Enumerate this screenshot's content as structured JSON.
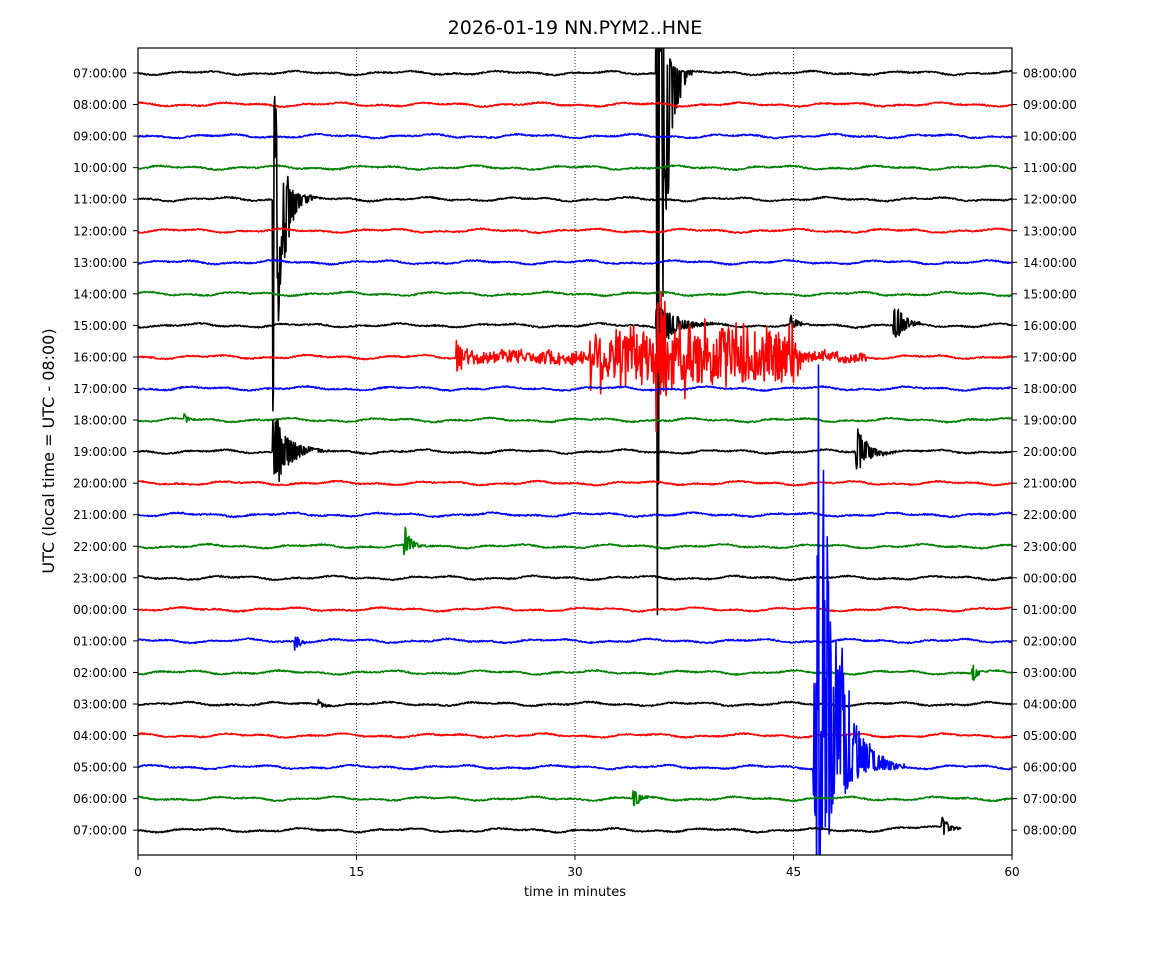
{
  "chart_data": {
    "type": "line",
    "title": "2026-01-19 NN.PYM2..HNE",
    "xlabel": "time in minutes",
    "ylabel": "UTC (local time = UTC - 08:00)",
    "xlim": [
      0,
      60
    ],
    "x_ticks": [
      0,
      15,
      30,
      45,
      60
    ],
    "x_grid": true,
    "trace_colors": [
      "#000000",
      "#ff0000",
      "#0000ff",
      "#008000"
    ],
    "rows": [
      {
        "left": "07:00:00",
        "right": "08:00:00"
      },
      {
        "left": "08:00:00",
        "right": "09:00:00"
      },
      {
        "left": "09:00:00",
        "right": "10:00:00"
      },
      {
        "left": "10:00:00",
        "right": "11:00:00"
      },
      {
        "left": "11:00:00",
        "right": "12:00:00"
      },
      {
        "left": "12:00:00",
        "right": "13:00:00"
      },
      {
        "left": "13:00:00",
        "right": "14:00:00"
      },
      {
        "left": "14:00:00",
        "right": "15:00:00"
      },
      {
        "left": "15:00:00",
        "right": "16:00:00"
      },
      {
        "left": "16:00:00",
        "right": "17:00:00"
      },
      {
        "left": "17:00:00",
        "right": "18:00:00"
      },
      {
        "left": "18:00:00",
        "right": "19:00:00"
      },
      {
        "left": "19:00:00",
        "right": "20:00:00"
      },
      {
        "left": "20:00:00",
        "right": "21:00:00"
      },
      {
        "left": "21:00:00",
        "right": "22:00:00"
      },
      {
        "left": "22:00:00",
        "right": "23:00:00"
      },
      {
        "left": "23:00:00",
        "right": "00:00:00"
      },
      {
        "left": "00:00:00",
        "right": "01:00:00"
      },
      {
        "left": "01:00:00",
        "right": "02:00:00"
      },
      {
        "left": "02:00:00",
        "right": "03:00:00"
      },
      {
        "left": "03:00:00",
        "right": "04:00:00"
      },
      {
        "left": "04:00:00",
        "right": "05:00:00"
      },
      {
        "left": "05:00:00",
        "right": "06:00:00"
      },
      {
        "left": "06:00:00",
        "right": "07:00:00"
      },
      {
        "left": "07:00:00",
        "right": "08:00:00"
      }
    ],
    "last_row_end_minute": 56.5,
    "events": [
      {
        "row": 4,
        "minute": 9.3,
        "amp_up": 4.0,
        "amp_down": 7.0,
        "decay": 0.6
      },
      {
        "row": 12,
        "minute": 9.3,
        "amp_up": 1.5,
        "amp_down": 1.5,
        "decay": 0.9
      },
      {
        "row": 0,
        "minute": 35.6,
        "amp_up": 3.0,
        "amp_down": 20.0,
        "decay": 0.5
      },
      {
        "row": 8,
        "minute": 35.6,
        "amp_up": 1.2,
        "amp_down": 1.0,
        "decay": 1.0
      },
      {
        "row": 9,
        "minute": 35.6,
        "amp_up": 1.8,
        "amp_down": 1.8,
        "decay": 1.2
      },
      {
        "row": 22,
        "minute": 46.6,
        "amp_up": 14.0,
        "amp_down": 3.5,
        "decay": 1.2
      },
      {
        "row": 22,
        "minute": 46.4,
        "amp_up": 4.5,
        "amp_down": 2.0,
        "decay": 1.0
      },
      {
        "row": 8,
        "minute": 51.9,
        "amp_up": 0.9,
        "amp_down": 0.6,
        "decay": 0.6
      },
      {
        "row": 8,
        "minute": 44.8,
        "amp_up": 0.3,
        "amp_down": 0.3,
        "decay": 0.4
      },
      {
        "row": 12,
        "minute": 49.3,
        "amp_up": 0.9,
        "amp_down": 0.8,
        "decay": 0.7
      },
      {
        "row": 15,
        "minute": 18.3,
        "amp_up": 0.6,
        "amp_down": 0.5,
        "decay": 0.4
      },
      {
        "row": 23,
        "minute": 34.0,
        "amp_up": 0.4,
        "amp_down": 0.4,
        "decay": 0.4
      },
      {
        "row": 24,
        "minute": 55.2,
        "amp_up": 0.4,
        "amp_down": 0.3,
        "decay": 0.4
      },
      {
        "row": 18,
        "minute": 10.8,
        "amp_up": 0.3,
        "amp_down": 0.3,
        "decay": 0.3
      },
      {
        "row": 19,
        "minute": 57.3,
        "amp_up": 0.3,
        "amp_down": 0.3,
        "decay": 0.3
      },
      {
        "row": 9,
        "minute": 21.9,
        "amp_up": 0.6,
        "amp_down": 0.6,
        "decay": 0.3
      },
      {
        "row": 11,
        "minute": 3.2,
        "amp_up": 0.15,
        "amp_down": 0.15,
        "decay": 0.3
      },
      {
        "row": 20,
        "minute": 12.4,
        "amp_up": 0.15,
        "amp_down": 0.15,
        "decay": 0.3
      }
    ],
    "noise_bursts": [
      {
        "row": 9,
        "start": 22.0,
        "end": 31.0,
        "amp": 0.25
      },
      {
        "row": 9,
        "start": 31.0,
        "end": 45.5,
        "amp": 1.2
      },
      {
        "row": 9,
        "start": 45.5,
        "end": 50.0,
        "amp": 0.2
      }
    ]
  }
}
